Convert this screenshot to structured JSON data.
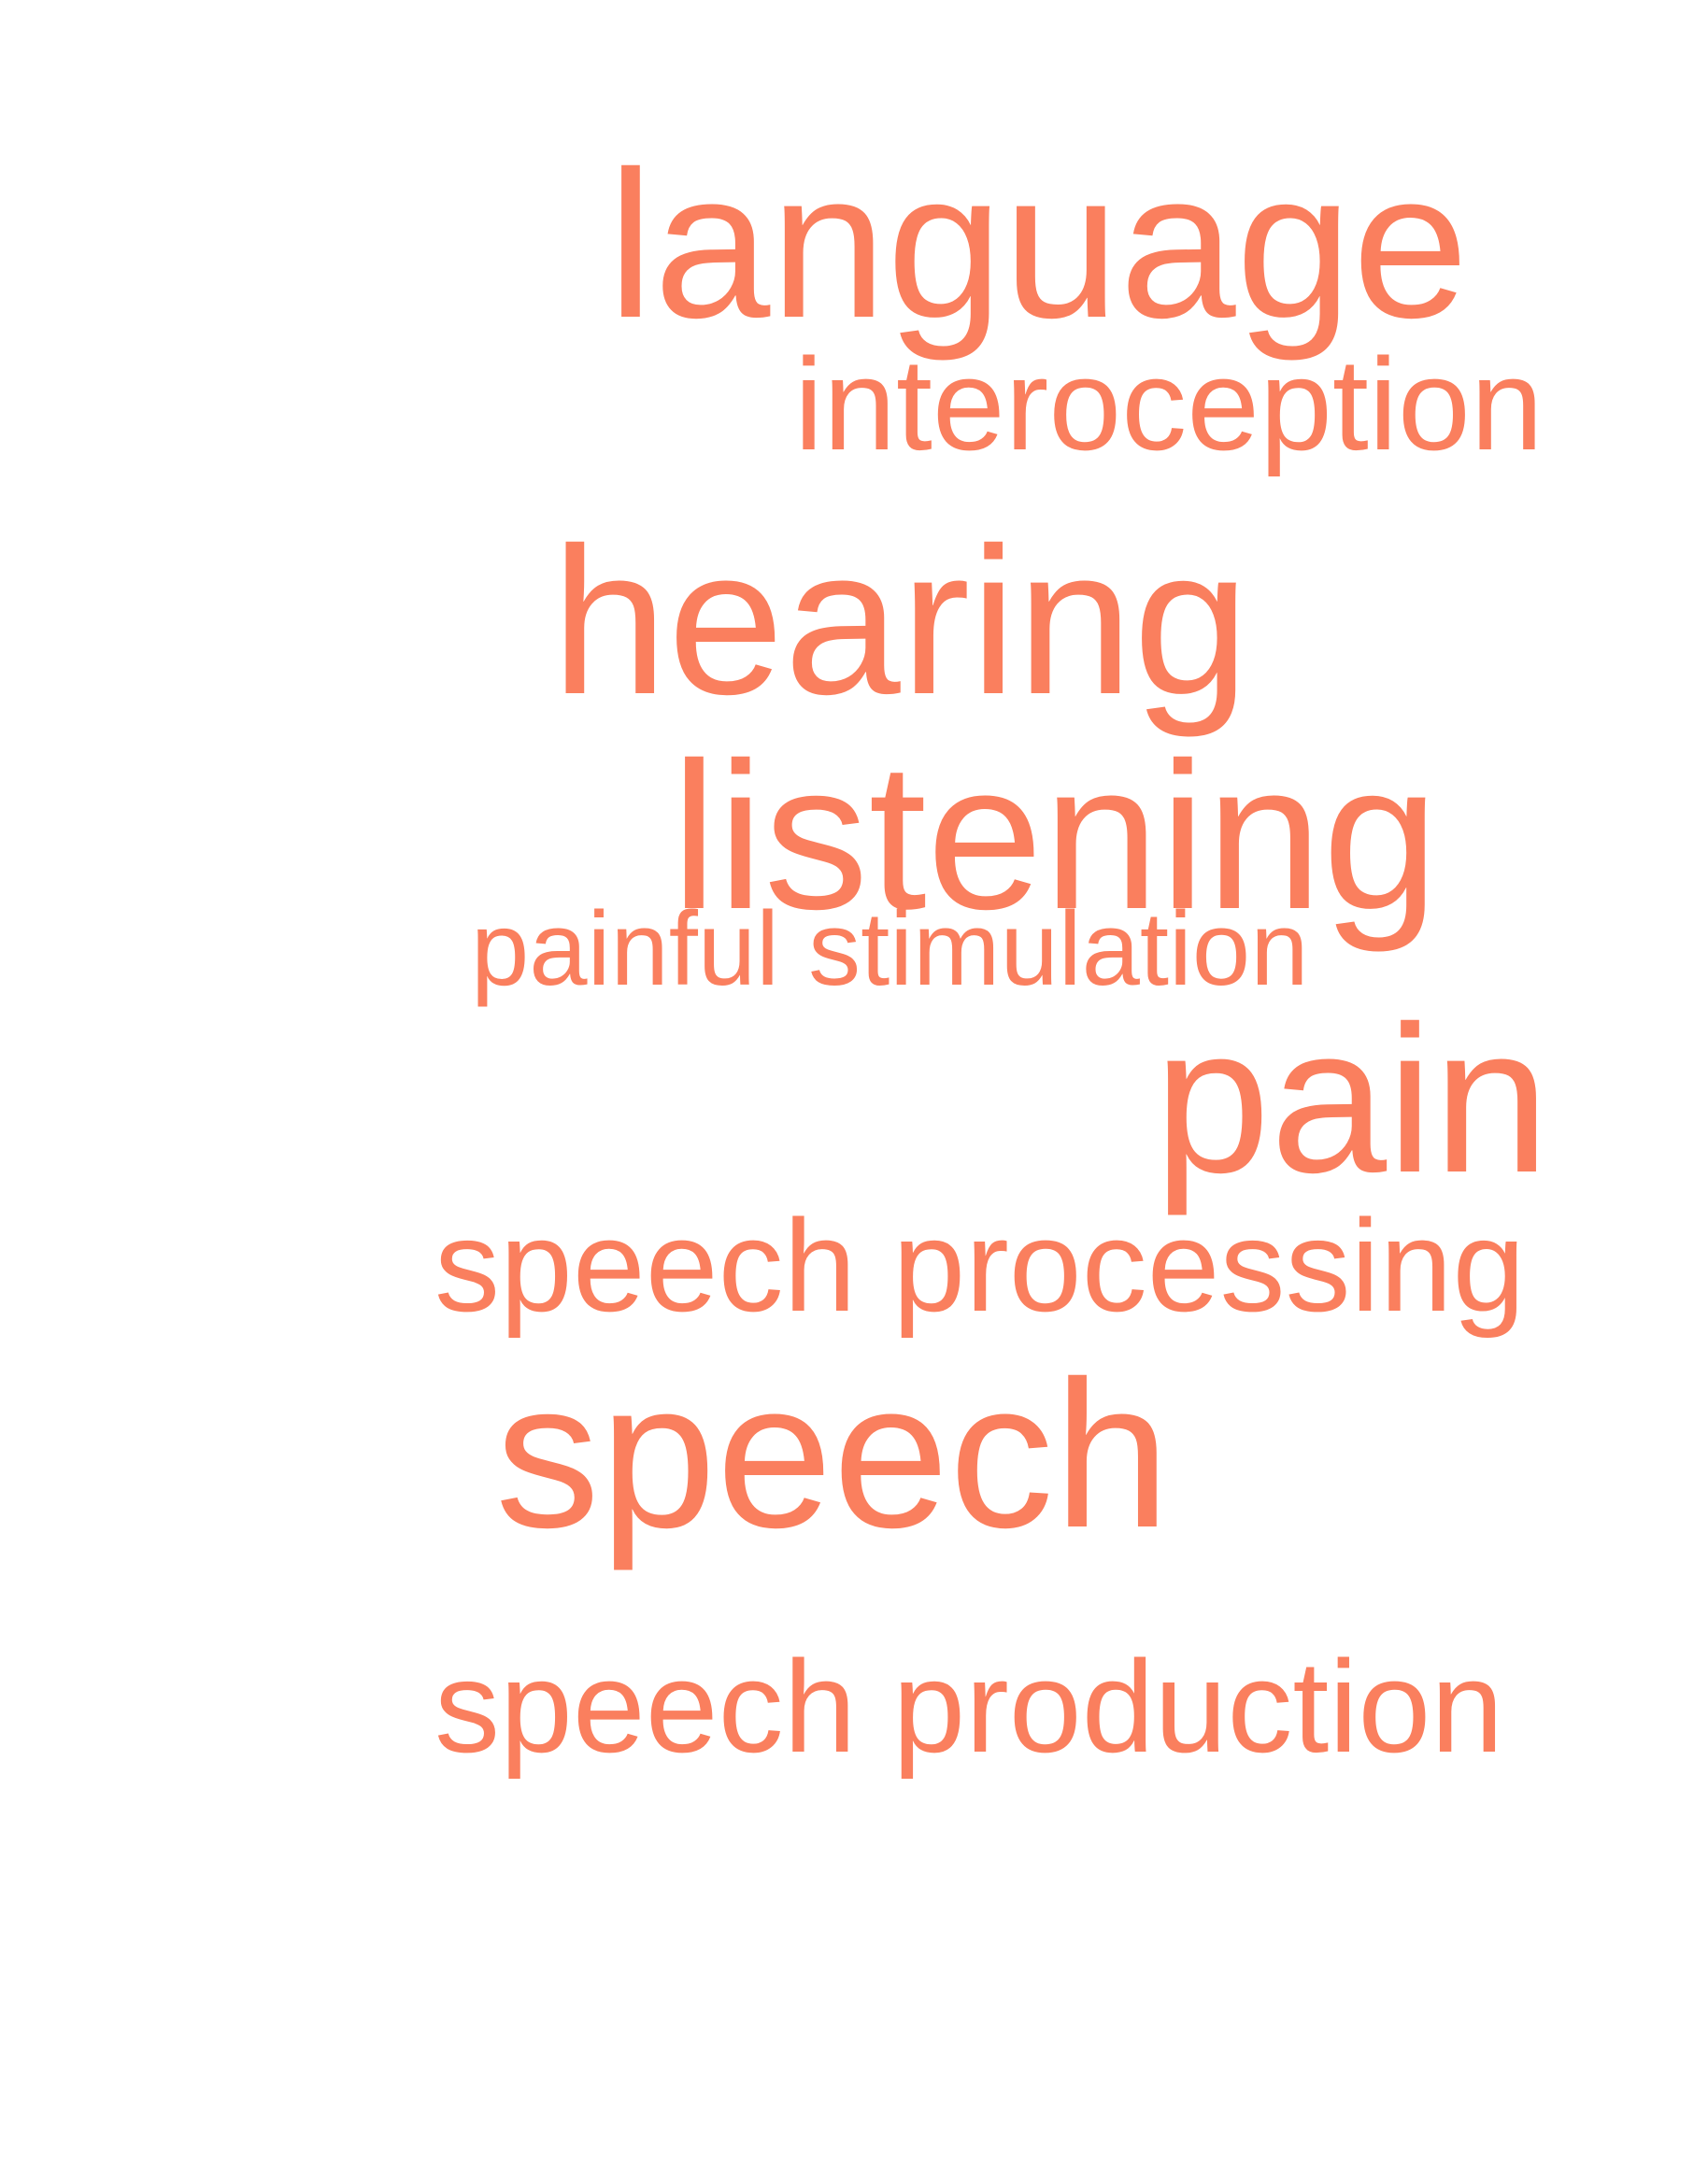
{
  "word_color": "#fa7f5e",
  "background_color": "#ffffff",
  "words": [
    {
      "text": "language",
      "size_rank": "large"
    },
    {
      "text": "interoception",
      "size_rank": "medium"
    },
    {
      "text": "hearing",
      "size_rank": "large"
    },
    {
      "text": "listening",
      "size_rank": "large"
    },
    {
      "text": "painful stimulation",
      "size_rank": "small"
    },
    {
      "text": "pain",
      "size_rank": "large"
    },
    {
      "text": "speech processing",
      "size_rank": "medium"
    },
    {
      "text": "speech",
      "size_rank": "large"
    },
    {
      "text": "speech production",
      "size_rank": "medium"
    }
  ]
}
